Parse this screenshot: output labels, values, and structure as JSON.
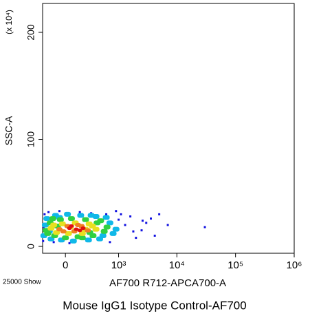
{
  "chart_data": {
    "type": "scatter",
    "title": "Mouse IgG1 Isotype Control-AF700",
    "x_label": "AF700 R712-APCA700-A",
    "y_label": "SSC-A",
    "y_multiplier": "(x 10⁴)",
    "event_note": "25000 Show",
    "xscale": "logicle",
    "xlim": [
      -257,
      1000000
    ],
    "xticks": [
      0,
      {
        "value": 1000,
        "label": "10³"
      },
      {
        "value": 10000,
        "label": "10⁴"
      },
      {
        "value": 100000,
        "label": "10⁵"
      },
      {
        "value": 1000000,
        "label": "10⁶"
      }
    ],
    "ylim": [
      -6.4,
      227
    ],
    "yticks": [
      0,
      100,
      200
    ],
    "series": [
      {
        "color": "#1010e0",
        "x": [
          -250,
          -230,
          -180,
          -120,
          -60,
          40,
          150,
          300,
          450,
          600,
          800,
          1000,
          1300,
          1600,
          2000,
          2500,
          3000,
          3600,
          4200,
          5000,
          7000,
          30000,
          -240,
          700,
          1100,
          1800,
          2600,
          900
        ],
        "values": [
          5,
          30,
          32,
          4,
          33,
          3,
          32,
          31,
          6,
          30,
          12,
          25,
          20,
          28,
          8,
          15,
          22,
          26,
          10,
          30,
          20,
          18,
          18,
          4,
          30,
          14,
          24,
          33
        ]
      },
      {
        "color": "#10b8e8",
        "x": [
          -240,
          -200,
          -150,
          -100,
          -40,
          20,
          80,
          160,
          260,
          380,
          520,
          700,
          900,
          -220,
          -170,
          600,
          800,
          450,
          -60,
          300
        ],
        "values": [
          10,
          26,
          7,
          29,
          6,
          30,
          5,
          29,
          6,
          28,
          10,
          22,
          16,
          20,
          14,
          27,
          12,
          7,
          27,
          29
        ]
      },
      {
        "color": "#30d040",
        "x": [
          -210,
          -160,
          -110,
          -50,
          0,
          60,
          130,
          220,
          330,
          470,
          620,
          -190,
          -130,
          400,
          550,
          -80,
          180,
          280
        ],
        "values": [
          15,
          22,
          10,
          25,
          8,
          26,
          9,
          25,
          10,
          24,
          18,
          12,
          26,
          22,
          14,
          19,
          8,
          13
        ]
      },
      {
        "color": "#e8e020",
        "x": [
          -150,
          -90,
          -30,
          30,
          100,
          180,
          270,
          380,
          -120,
          50,
          220,
          320
        ],
        "values": [
          17,
          13,
          21,
          12,
          22,
          12,
          21,
          16,
          20,
          18,
          16,
          19
        ]
      },
      {
        "color": "#f08020",
        "x": [
          -60,
          20,
          90,
          170,
          250,
          -20,
          130
        ],
        "values": [
          16,
          19,
          14,
          19,
          15,
          14,
          20
        ]
      },
      {
        "color": "#e01010",
        "x": [
          40,
          110,
          190,
          60,
          150
        ],
        "values": [
          17,
          16,
          17,
          19,
          15
        ]
      }
    ]
  }
}
